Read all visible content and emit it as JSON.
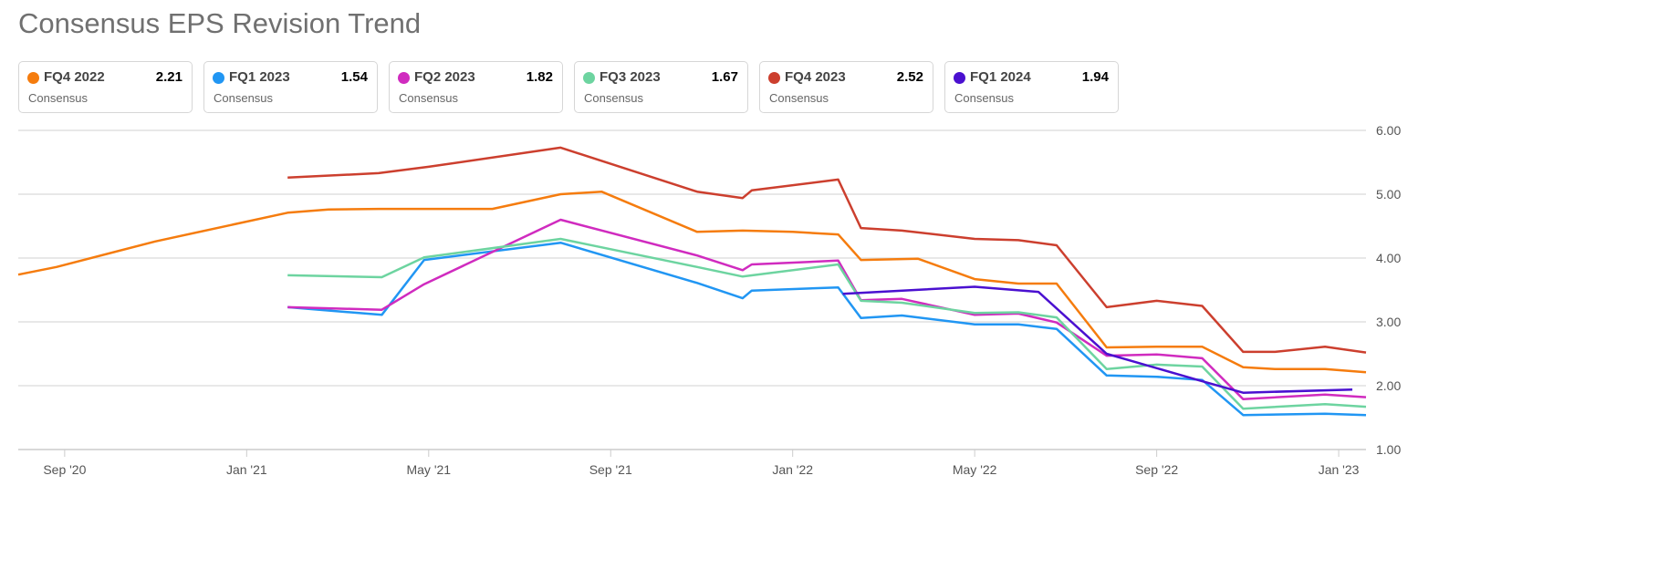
{
  "title": "Consensus EPS Revision Trend",
  "legend": [
    {
      "name": "FQ4 2022",
      "value": "2.21",
      "sub": "Consensus",
      "color": "#f57c0e"
    },
    {
      "name": "FQ1 2023",
      "value": "1.54",
      "sub": "Consensus",
      "color": "#2196f3"
    },
    {
      "name": "FQ2 2023",
      "value": "1.82",
      "sub": "Consensus",
      "color": "#d02bbf"
    },
    {
      "name": "FQ3 2023",
      "value": "1.67",
      "sub": "Consensus",
      "color": "#6dd4a0"
    },
    {
      "name": "FQ4 2023",
      "value": "2.52",
      "sub": "Consensus",
      "color": "#cc3f2e"
    },
    {
      "name": "FQ1 2024",
      "value": "1.94",
      "sub": "Consensus",
      "color": "#4a10d0"
    }
  ],
  "chart_data": {
    "type": "line",
    "title": "Consensus EPS Revision Trend",
    "x_unit": "months since Sep 2020",
    "xticks": [
      {
        "m": 0,
        "label": "Sep '20"
      },
      {
        "m": 4,
        "label": "Jan '21"
      },
      {
        "m": 8,
        "label": "May '21"
      },
      {
        "m": 12,
        "label": "Sep '21"
      },
      {
        "m": 16,
        "label": "Jan '22"
      },
      {
        "m": 20,
        "label": "May '22"
      },
      {
        "m": 24,
        "label": "Sep '22"
      },
      {
        "m": 28,
        "label": "Jan '23"
      }
    ],
    "yticks": [
      "6.00",
      "5.00",
      "4.00",
      "3.00",
      "2.00",
      "1.00"
    ],
    "ylim": [
      1,
      6
    ],
    "xlim": [
      -1.02,
      28.6
    ],
    "grid": true,
    "series": [
      {
        "name": "FQ4 2022",
        "color": "#f57c0e",
        "points": [
          [
            -1.02,
            3.74
          ],
          [
            -0.18,
            3.86
          ],
          [
            1.99,
            4.26
          ],
          [
            4.9,
            4.71
          ],
          [
            5.8,
            4.76
          ],
          [
            6.9,
            4.77
          ],
          [
            7.9,
            4.77
          ],
          [
            9.4,
            4.77
          ],
          [
            10.9,
            5.0
          ],
          [
            11.8,
            5.04
          ],
          [
            13.9,
            4.41
          ],
          [
            14.9,
            4.43
          ],
          [
            16.0,
            4.41
          ],
          [
            17.0,
            4.37
          ],
          [
            17.5,
            3.97
          ],
          [
            18.75,
            3.99
          ],
          [
            20.0,
            3.67
          ],
          [
            20.96,
            3.6
          ],
          [
            21.8,
            3.6
          ],
          [
            22.9,
            2.6
          ],
          [
            24.0,
            2.61
          ],
          [
            25.0,
            2.61
          ],
          [
            25.9,
            2.29
          ],
          [
            26.6,
            2.26
          ],
          [
            27.7,
            2.26
          ],
          [
            28.6,
            2.21
          ]
        ]
      },
      {
        "name": "FQ1 2023",
        "color": "#2196f3",
        "points": [
          [
            4.9,
            3.23
          ],
          [
            6.97,
            3.11
          ],
          [
            7.9,
            3.97
          ],
          [
            10.9,
            4.24
          ],
          [
            13.9,
            3.61
          ],
          [
            14.9,
            3.37
          ],
          [
            15.1,
            3.49
          ],
          [
            17.0,
            3.54
          ],
          [
            17.5,
            3.06
          ],
          [
            18.4,
            3.1
          ],
          [
            20.0,
            2.96
          ],
          [
            20.96,
            2.96
          ],
          [
            21.8,
            2.89
          ],
          [
            22.9,
            2.16
          ],
          [
            24.0,
            2.14
          ],
          [
            25.0,
            2.09
          ],
          [
            25.9,
            1.54
          ],
          [
            27.7,
            1.56
          ],
          [
            28.6,
            1.54
          ]
        ]
      },
      {
        "name": "FQ2 2023",
        "color": "#d02bbf",
        "points": [
          [
            4.9,
            3.23
          ],
          [
            6.97,
            3.19
          ],
          [
            7.9,
            3.59
          ],
          [
            10.9,
            4.6
          ],
          [
            13.9,
            4.04
          ],
          [
            14.9,
            3.81
          ],
          [
            15.1,
            3.9
          ],
          [
            17.0,
            3.96
          ],
          [
            17.5,
            3.34
          ],
          [
            18.4,
            3.36
          ],
          [
            20.0,
            3.11
          ],
          [
            20.96,
            3.13
          ],
          [
            21.8,
            2.99
          ],
          [
            22.9,
            2.47
          ],
          [
            24.0,
            2.49
          ],
          [
            25.0,
            2.43
          ],
          [
            25.9,
            1.79
          ],
          [
            27.7,
            1.86
          ],
          [
            28.6,
            1.82
          ]
        ]
      },
      {
        "name": "FQ3 2023",
        "color": "#6dd4a0",
        "points": [
          [
            4.9,
            3.73
          ],
          [
            6.97,
            3.7
          ],
          [
            7.9,
            4.01
          ],
          [
            10.9,
            4.3
          ],
          [
            13.9,
            3.86
          ],
          [
            14.9,
            3.71
          ],
          [
            17.0,
            3.9
          ],
          [
            17.5,
            3.33
          ],
          [
            18.4,
            3.3
          ],
          [
            20.0,
            3.14
          ],
          [
            20.96,
            3.15
          ],
          [
            21.8,
            3.07
          ],
          [
            22.9,
            2.26
          ],
          [
            24.0,
            2.33
          ],
          [
            25.0,
            2.3
          ],
          [
            25.9,
            1.64
          ],
          [
            27.7,
            1.71
          ],
          [
            28.6,
            1.67
          ]
        ]
      },
      {
        "name": "FQ4 2023",
        "color": "#cc3f2e",
        "points": [
          [
            4.9,
            5.26
          ],
          [
            6.9,
            5.33
          ],
          [
            8.0,
            5.43
          ],
          [
            10.9,
            5.73
          ],
          [
            13.9,
            5.04
          ],
          [
            14.9,
            4.94
          ],
          [
            15.1,
            5.06
          ],
          [
            17.0,
            5.23
          ],
          [
            17.5,
            4.47
          ],
          [
            18.4,
            4.43
          ],
          [
            20.0,
            4.3
          ],
          [
            20.96,
            4.28
          ],
          [
            21.8,
            4.2
          ],
          [
            22.9,
            3.23
          ],
          [
            24.0,
            3.33
          ],
          [
            25.0,
            3.25
          ],
          [
            25.9,
            2.53
          ],
          [
            26.6,
            2.53
          ],
          [
            27.7,
            2.61
          ],
          [
            28.6,
            2.52
          ]
        ]
      },
      {
        "name": "FQ1 2024",
        "color": "#4a10d0",
        "points": [
          [
            17.1,
            3.44
          ],
          [
            20.0,
            3.55
          ],
          [
            21.4,
            3.47
          ],
          [
            22.9,
            2.5
          ],
          [
            24.9,
            2.09
          ],
          [
            25.9,
            1.89
          ],
          [
            28.3,
            1.94
          ]
        ]
      }
    ]
  }
}
